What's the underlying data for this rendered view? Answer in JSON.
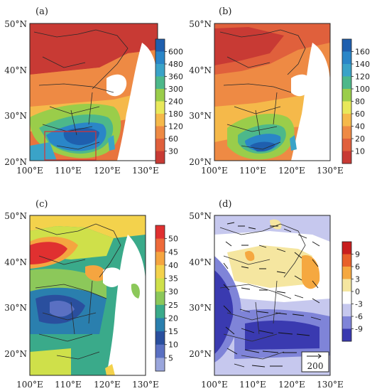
{
  "panels": [
    {
      "label": "(a)",
      "colorbar_ticks": [
        "600",
        "480",
        "360",
        "300",
        "240",
        "180",
        "120",
        "60",
        "30"
      ],
      "colorbar_colors": [
        "#1f5fae",
        "#2a86c8",
        "#3aa3c8",
        "#4db88a",
        "#9acd4a",
        "#e8e85a",
        "#f5b94a",
        "#ee8a44",
        "#e0603c",
        "#c83a34"
      ]
    },
    {
      "label": "(b)",
      "colorbar_ticks": [
        "160",
        "140",
        "120",
        "100",
        "80",
        "60",
        "40",
        "20",
        "10"
      ],
      "colorbar_colors": [
        "#1f5fae",
        "#2a86c8",
        "#3aa3c8",
        "#4db88a",
        "#9acd4a",
        "#e8e85a",
        "#f5b94a",
        "#ee8a44",
        "#e0603c",
        "#c83a34"
      ]
    },
    {
      "label": "(c)",
      "colorbar_ticks": [
        "50",
        "45",
        "40",
        "35",
        "30",
        "25",
        "20",
        "15",
        "10",
        "5"
      ],
      "colorbar_colors": [
        "#e03030",
        "#ee6a3a",
        "#f5a540",
        "#f3d24c",
        "#cfe04a",
        "#8cc85a",
        "#3aaa8a",
        "#2a7fae",
        "#2a4f9e",
        "#5a70c2",
        "#9aa6dc"
      ]
    },
    {
      "label": "(d)",
      "colorbar_ticks": [
        "9",
        "6",
        "3",
        "0",
        "-3",
        "-6",
        "-9"
      ],
      "colorbar_colors": [
        "#c81e1e",
        "#e8602a",
        "#f5a840",
        "#f5e6a0",
        "#ffffff",
        "#c6c8ee",
        "#7f84d8",
        "#3a3ab0"
      ],
      "vector_reference": "200"
    }
  ],
  "axes": {
    "lat_ticks": [
      "50°N",
      "40°N",
      "30°N",
      "20°N"
    ],
    "lon_ticks": [
      "100°E",
      "110°E",
      "120°E",
      "130°E"
    ]
  },
  "colors": {
    "box": "#e03030",
    "border": "#222222"
  }
}
